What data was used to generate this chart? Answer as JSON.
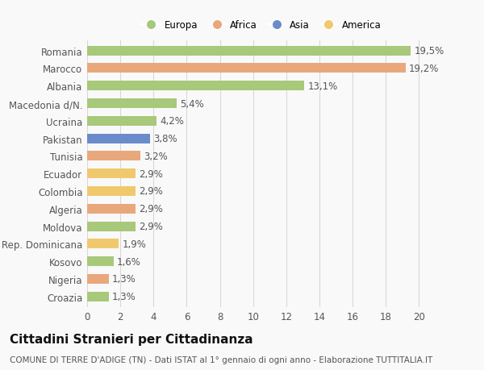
{
  "countries": [
    "Romania",
    "Marocco",
    "Albania",
    "Macedonia d/N.",
    "Ucraina",
    "Pakistan",
    "Tunisia",
    "Ecuador",
    "Colombia",
    "Algeria",
    "Moldova",
    "Rep. Dominicana",
    "Kosovo",
    "Nigeria",
    "Croazia"
  ],
  "values": [
    19.5,
    19.2,
    13.1,
    5.4,
    4.2,
    3.8,
    3.2,
    2.9,
    2.9,
    2.9,
    2.9,
    1.9,
    1.6,
    1.3,
    1.3
  ],
  "continents": [
    "Europa",
    "Africa",
    "Europa",
    "Europa",
    "Europa",
    "Asia",
    "Africa",
    "America",
    "America",
    "Africa",
    "Europa",
    "America",
    "Europa",
    "Africa",
    "Europa"
  ],
  "colors": {
    "Europa": "#a8c87a",
    "Africa": "#e8a87c",
    "Asia": "#6b8cca",
    "America": "#f0c96e"
  },
  "legend_order": [
    "Europa",
    "Africa",
    "Asia",
    "America"
  ],
  "xlim": [
    0,
    21
  ],
  "xticks": [
    0,
    2,
    4,
    6,
    8,
    10,
    12,
    14,
    16,
    18,
    20
  ],
  "title": "Cittadini Stranieri per Cittadinanza",
  "subtitle": "COMUNE DI TERRE D'ADIGE (TN) - Dati ISTAT al 1° gennaio di ogni anno - Elaborazione TUTTITALIA.IT",
  "background_color": "#f9f9f9",
  "bar_height": 0.55,
  "label_fontsize": 8.5,
  "title_fontsize": 11,
  "subtitle_fontsize": 7.5,
  "grid_color": "#d8d8d8"
}
